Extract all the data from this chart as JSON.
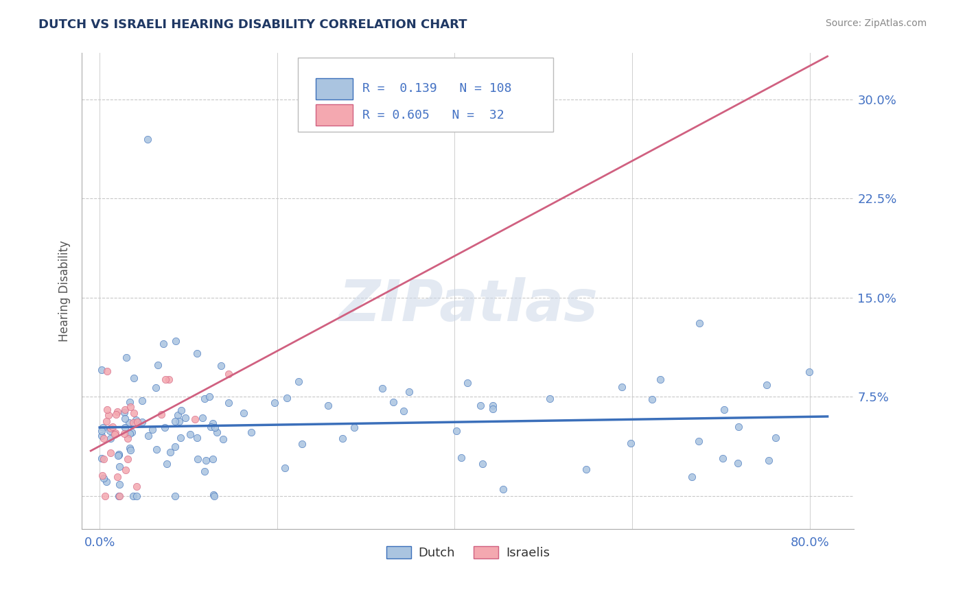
{
  "title": "DUTCH VS ISRAELI HEARING DISABILITY CORRELATION CHART",
  "source": "Source: ZipAtlas.com",
  "ylabel": "Hearing Disability",
  "y_ticks": [
    0.0,
    0.075,
    0.15,
    0.225,
    0.3
  ],
  "y_tick_labels": [
    "",
    "7.5%",
    "15.0%",
    "22.5%",
    "30.0%"
  ],
  "xlim": [
    -0.02,
    0.85
  ],
  "ylim": [
    -0.025,
    0.335
  ],
  "dutch_color": "#aac4e0",
  "israeli_color": "#f4a8b0",
  "dutch_line_color": "#3b6fba",
  "israeli_line_color": "#d06080",
  "R_dutch": 0.139,
  "N_dutch": 108,
  "R_israeli": 0.605,
  "N_israeli": 32,
  "watermark_text": "ZIPatlas",
  "legend_dutch": "Dutch",
  "legend_israeli": "Israelis",
  "background_color": "#ffffff",
  "grid_color": "#c8c8c8",
  "axis_color": "#4472c4",
  "title_color": "#1f3864"
}
